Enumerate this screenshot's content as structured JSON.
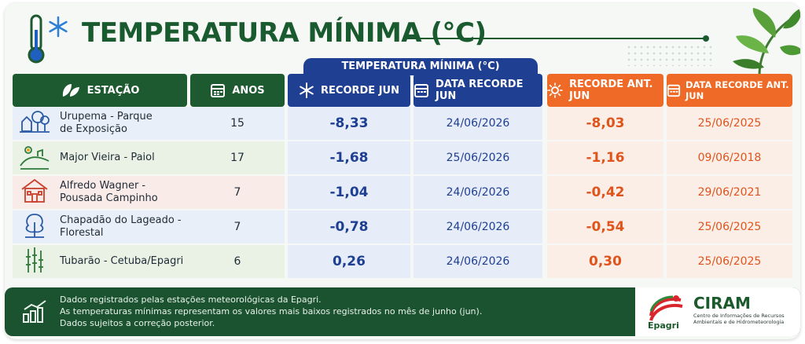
{
  "header": {
    "title": "TEMPERATURA MÍNIMA (°C)",
    "group_banner": "TEMPERATURA MÍNIMA (°C)"
  },
  "columns": {
    "station": "ESTAÇÃO",
    "years": "ANOS",
    "record_jun": "RECORDE JUN",
    "record_date": "DATA RECORDE JUN",
    "prev_record": "RECORDE ANT. JUN",
    "prev_date": "DATA RECORDE ANT. JUN"
  },
  "rows": [
    {
      "station_line1": "Urupema - Parque",
      "station_line2": "de Exposição",
      "icon": "forest-house-icon",
      "years": "15",
      "record": "-8,33",
      "record_date": "24/06/2026",
      "prev_record": "-8,03",
      "prev_date": "25/06/2025"
    },
    {
      "station_line1": "Major Vieira - Paiol",
      "station_line2": "",
      "icon": "hill-sun-icon",
      "years": "17",
      "record": "-1,68",
      "record_date": "25/06/2026",
      "prev_record": "-1,16",
      "prev_date": "09/06/2018"
    },
    {
      "station_line1": "Alfredo Wagner -",
      "station_line2": "Pousada Campinho",
      "icon": "house-icon",
      "years": "7",
      "record": "-1,04",
      "record_date": "24/06/2026",
      "prev_record": "-0,42",
      "prev_date": "29/06/2021"
    },
    {
      "station_line1": "Chapadão do Lageado -",
      "station_line2": "Florestal",
      "icon": "tree-icon",
      "years": "7",
      "record": "-0,78",
      "record_date": "24/06/2026",
      "prev_record": "-0,54",
      "prev_date": "25/06/2025"
    },
    {
      "station_line1": "Tubarão - Cetuba/Epagri",
      "station_line2": "",
      "icon": "bamboo-icon",
      "years": "6",
      "record": "0,26",
      "record_date": "24/06/2026",
      "prev_record": "0,30",
      "prev_date": "25/06/2025"
    }
  ],
  "row_colors": [
    "#e9eff8",
    "#eaf2e6",
    "#f9ebe8",
    "#e9eff8",
    "#eaf2e6"
  ],
  "footer": {
    "line1": "Dados registrados pelas estações meteorológicas da Epagri.",
    "line2": "As temperaturas mínimas representam os valores mais baixos registrados no mês de junho (jun).",
    "line3": "Dados sujeitos a correção posterior."
  },
  "logos": {
    "epagri": "Epagri",
    "ciram": "CIRAM",
    "ciram_sub_1": "Centro de Informações de Recursos",
    "ciram_sub_2": "Ambientais e de Hidrometeorologia"
  },
  "colors": {
    "green": "#1e5a30",
    "blue": "#1f3f92",
    "orange": "#ee6a26"
  }
}
